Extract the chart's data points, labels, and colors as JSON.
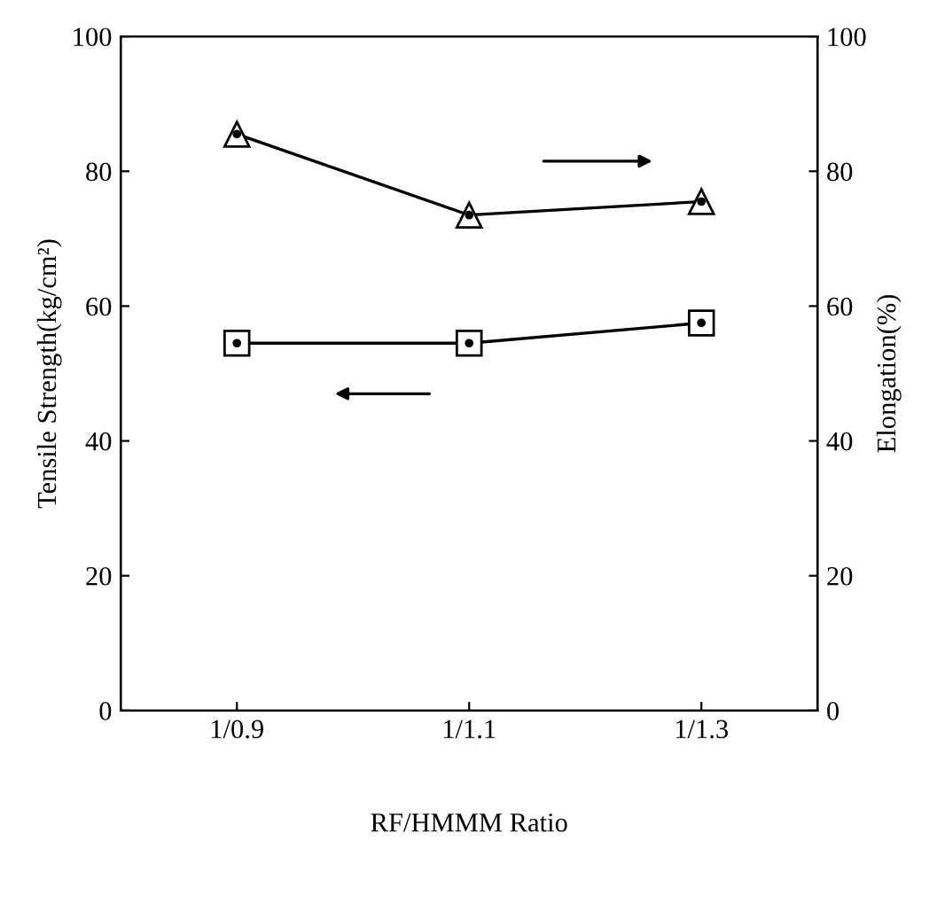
{
  "chart_data": {
    "type": "line",
    "xlabel": "RF/HMMM Ratio",
    "ylabel": "Tensile Strength(kg/cm²)",
    "y2label": "Elongation(%)",
    "categories": [
      "1/0.9",
      "1/1.1",
      "1/1.3"
    ],
    "series": [
      {
        "color": "#000000",
        "marker": "square",
        "values": [
          54.5,
          54.5,
          57.5
        ]
      },
      {
        "color": "#000000",
        "marker": "triangle",
        "axis": "y2",
        "values": [
          85.5,
          73.5,
          75.5
        ]
      }
    ],
    "ylim": [
      0,
      100
    ],
    "yticks": [
      0,
      20,
      40,
      60,
      80,
      100
    ],
    "y2lim": [
      0,
      100
    ],
    "y2ticks": [
      0,
      20,
      40,
      60,
      80,
      100
    ],
    "grid": false,
    "legend": false,
    "line_style": "solid"
  }
}
